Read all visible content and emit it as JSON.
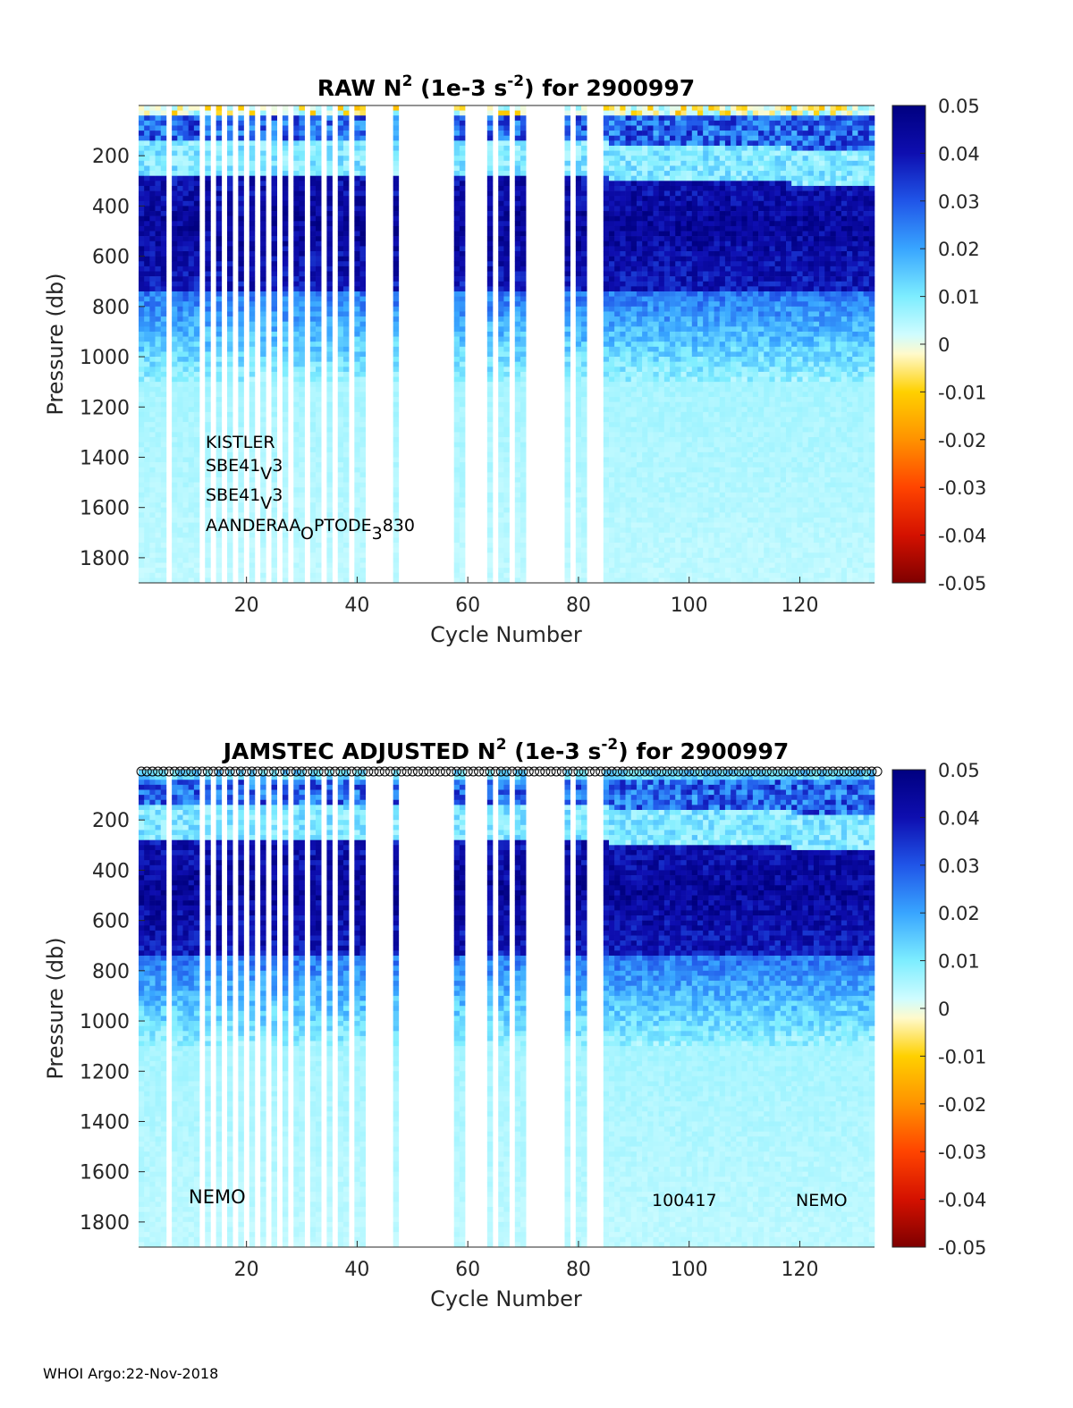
{
  "footer": "WHOI Argo:22-Nov-2018",
  "colormap": [
    "#7f0000",
    "#d41100",
    "#ff4400",
    "#ff9200",
    "#ffd000",
    "#fffacc",
    "#cffcff",
    "#7dedff",
    "#38a5ff",
    "#2055e8",
    "#0e0eb0",
    "#000080"
  ],
  "chart_data": [
    {
      "type": "heatmap",
      "title": "RAW N² (1e-3 s⁻²) for 2900997",
      "title_parts": {
        "pre": "RAW N",
        "sup1": "2",
        "mid": " (1e-3 s",
        "sup2": "-2",
        "post": ") for 2900997"
      },
      "xlabel": "Cycle Number",
      "ylabel": "Pressure (db)",
      "xlim": [
        1,
        133
      ],
      "ylim": [
        1900,
        0
      ],
      "xticks": [
        "20",
        "40",
        "60",
        "80",
        "100",
        "120"
      ],
      "yticks": [
        "200",
        "400",
        "600",
        "800",
        "1000",
        "1200",
        "1400",
        "1600",
        "1800"
      ],
      "colorbar": {
        "min": -0.05,
        "max": 0.05,
        "ticks": [
          "0.05",
          "0.04",
          "0.03",
          "0.02",
          "0.01",
          "0",
          "-0.01",
          "-0.02",
          "-0.03",
          "-0.04",
          "-0.05"
        ]
      },
      "cycles_present": [
        1,
        2,
        3,
        4,
        5,
        7,
        8,
        9,
        10,
        11,
        13,
        15,
        17,
        19,
        21,
        23,
        25,
        27,
        29,
        30,
        32,
        33,
        35,
        37,
        38,
        40,
        41,
        47,
        58,
        59,
        64,
        66,
        67,
        69,
        70,
        78,
        80,
        81,
        85,
        86,
        87,
        88,
        89,
        90,
        91,
        92,
        93,
        94,
        95,
        96,
        97,
        98,
        99,
        100,
        101,
        102,
        103,
        104,
        105,
        106,
        107,
        108,
        109,
        110,
        111,
        112,
        113,
        114,
        115,
        116,
        117,
        118,
        119,
        120,
        121,
        122,
        123,
        124,
        125,
        126,
        127,
        128,
        129,
        130,
        131,
        132,
        133
      ],
      "profile_shape": {
        "surface_n2": 0.03,
        "low_band_depth_db": 230,
        "peak_n2_db": 480,
        "peak_n2": 0.045,
        "deep_n2": 0.009
      },
      "annotations": [
        "KISTLER",
        "SBE41",
        "V",
        "3",
        "SBE41",
        "V",
        "3",
        "AANDERAA",
        "O",
        "PTODE",
        "3",
        "830"
      ],
      "show_markers": false
    },
    {
      "type": "heatmap",
      "title": "JAMSTEC  ADJUSTED N² (1e-3 s⁻²) for 2900997",
      "title_parts": {
        "pre": "JAMSTEC  ADJUSTED N",
        "sup1": "2",
        "mid": " (1e-3 s",
        "sup2": "-2",
        "post": ") for 2900997"
      },
      "xlabel": "Cycle Number",
      "ylabel": "Pressure (db)",
      "xlim": [
        1,
        133
      ],
      "ylim": [
        1900,
        0
      ],
      "xticks": [
        "20",
        "40",
        "60",
        "80",
        "100",
        "120"
      ],
      "yticks": [
        "200",
        "400",
        "600",
        "800",
        "1000",
        "1200",
        "1400",
        "1600",
        "1800"
      ],
      "colorbar": {
        "min": -0.05,
        "max": 0.05,
        "ticks": [
          "0.05",
          "0.04",
          "0.03",
          "0.02",
          "0.01",
          "0",
          "-0.01",
          "-0.02",
          "-0.03",
          "-0.04",
          "-0.05"
        ]
      },
      "cycles_present": [
        1,
        2,
        3,
        4,
        5,
        7,
        8,
        9,
        10,
        11,
        13,
        15,
        17,
        19,
        21,
        23,
        25,
        27,
        29,
        30,
        32,
        33,
        35,
        37,
        38,
        40,
        41,
        47,
        58,
        59,
        64,
        66,
        67,
        69,
        70,
        78,
        80,
        81,
        85,
        86,
        87,
        88,
        89,
        90,
        91,
        92,
        93,
        94,
        95,
        96,
        97,
        98,
        99,
        100,
        101,
        102,
        103,
        104,
        105,
        106,
        107,
        108,
        109,
        110,
        111,
        112,
        113,
        114,
        115,
        116,
        117,
        118,
        119,
        120,
        121,
        122,
        123,
        124,
        125,
        126,
        127,
        128,
        129,
        130,
        131,
        132,
        133
      ],
      "profile_shape": {
        "surface_n2": 0.03,
        "low_band_depth_db": 230,
        "peak_n2_db": 480,
        "peak_n2": 0.045,
        "deep_n2": 0.009
      },
      "annotations": [
        "NEMO",
        "100417",
        "NEMO"
      ],
      "show_markers": true
    }
  ]
}
